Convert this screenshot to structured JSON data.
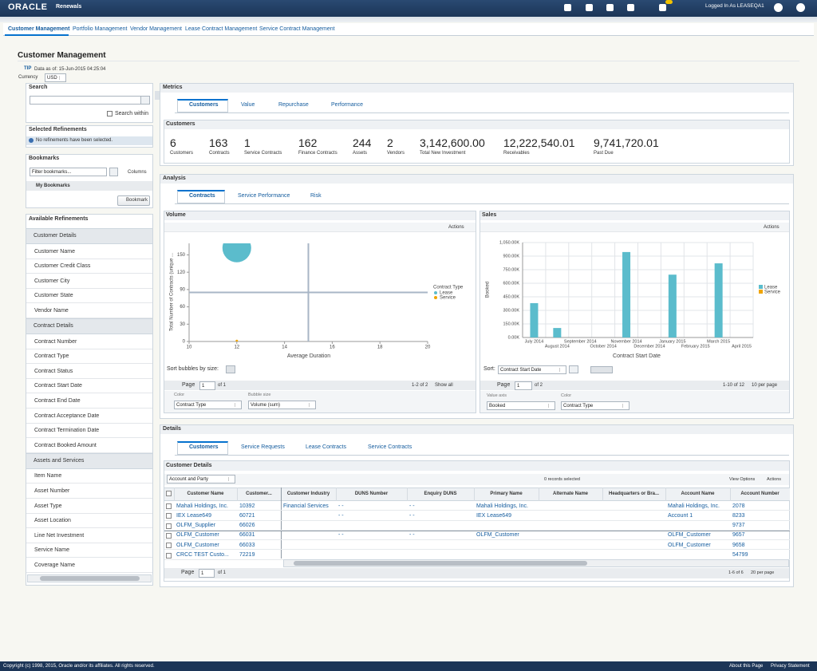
{
  "header": {
    "brand": "ORACLE",
    "product": "Renewals",
    "user": "Logged In As LEASEQA1"
  },
  "nav_tabs": [
    "Customer Management",
    "Portfolio Management",
    "Vendor Management",
    "Lease Contract Management",
    "Service Contract Management"
  ],
  "page": {
    "title": "Customer Management",
    "tip": "TIP",
    "data_as_of": "Data as of: 15-Jun-2015 04:25:04",
    "currency_label": "Currency",
    "currency": "USD"
  },
  "search": {
    "title": "Search",
    "search_within": "Search within"
  },
  "selected_refinements": {
    "title": "Selected Refinements",
    "message": "No refinements have been selected."
  },
  "bookmarks": {
    "title": "Bookmarks",
    "filter_placeholder": "Filter bookmarks...",
    "columns": "Columns",
    "my_bookmarks": "My Bookmarks",
    "button": "Bookmark"
  },
  "available_refinements": {
    "title": "Available Refinements",
    "groups": [
      {
        "name": "Customer Details",
        "items": [
          "Customer Name",
          "Customer Credit Class",
          "Customer City",
          "Customer State",
          "Vendor Name"
        ]
      },
      {
        "name": "Contract Details",
        "items": [
          "Contract Number",
          "Contract Type",
          "Contract Status",
          "Contract Start Date",
          "Contract End Date",
          "Contract Acceptance Date",
          "Contract Termination Date",
          "Contract Booked Amount"
        ]
      },
      {
        "name": "Assets and Services",
        "items": [
          "Item Name",
          "Asset Number",
          "Asset Type",
          "Asset Location",
          "Line Net Investment",
          "Service Name",
          "Coverage Name"
        ]
      }
    ]
  },
  "metrics": {
    "title": "Metrics",
    "tabs": [
      "Customers",
      "Value",
      "Repurchase",
      "Performance"
    ],
    "section_title": "Customers",
    "items": [
      {
        "value": "6",
        "label": "Customers"
      },
      {
        "value": "163",
        "label": "Contracts"
      },
      {
        "value": "1",
        "label": "Service Contracts"
      },
      {
        "value": "162",
        "label": "Finance Contracts"
      },
      {
        "value": "244",
        "label": "Assets"
      },
      {
        "value": "2",
        "label": "Vendors"
      },
      {
        "value": "3,142,600.00",
        "label": "Total New Investment"
      },
      {
        "value": "12,222,540.01",
        "label": "Receivables"
      },
      {
        "value": "9,741,720.01",
        "label": "Past Due"
      }
    ]
  },
  "analysis": {
    "title": "Analysis",
    "tabs": [
      "Contracts",
      "Service Performance",
      "Risk"
    ],
    "volume": {
      "title": "Volume",
      "actions": "Actions",
      "chart": {
        "type": "bubble",
        "y_label": "Total Number of Contracts (unique ...",
        "x_label": "Average Duration",
        "xlim": [
          10,
          20
        ],
        "xticks": [
          10,
          12,
          14,
          16,
          18,
          20
        ],
        "ylim": [
          0,
          170
        ],
        "yticks": [
          0,
          30,
          60,
          90,
          120,
          150
        ],
        "reference_x": 15,
        "reference_y": 85,
        "legend_title": "Contract Type",
        "series": [
          {
            "name": "Lease",
            "color": "#5bbccc",
            "x": [
              12
            ],
            "values": [
              162
            ],
            "sizes": [
              162
            ]
          },
          {
            "name": "Service",
            "color": "#f0a500",
            "x": [
              12
            ],
            "values": [
              1
            ],
            "sizes": [
              1
            ]
          }
        ]
      },
      "sort_label": "Sort bubbles by size:",
      "pager": {
        "page_label": "Page",
        "page": "1",
        "of": "of 1",
        "range": "1-2 of 2",
        "show_all": "Show all"
      },
      "color_label": "Color",
      "color_value": "Contract Type",
      "size_label": "Bubble size",
      "size_value": "Volume (sum)"
    },
    "sales": {
      "title": "Sales",
      "actions": "Actions",
      "chart": {
        "type": "bar",
        "y_label": "Booked",
        "x_label": "Contract Start Date",
        "categories": [
          "July 2014",
          "August 2014",
          "September 2014",
          "October 2014",
          "November 2014",
          "December 2014",
          "January 2015",
          "February 2015",
          "March 2015",
          "April 2015"
        ],
        "ylim": [
          0,
          1050000
        ],
        "yticks": [
          {
            "value": 0,
            "label": "0.00K"
          },
          {
            "value": 150000,
            "label": "150.00K"
          },
          {
            "value": 300000,
            "label": "300.00K"
          },
          {
            "value": 450000,
            "label": "450.00K"
          },
          {
            "value": 600000,
            "label": "600.00K"
          },
          {
            "value": 750000,
            "label": "750.00K"
          },
          {
            "value": 900000,
            "label": "900.00K"
          },
          {
            "value": 1050000,
            "label": "1,050.00K"
          }
        ],
        "grid": true,
        "series": [
          {
            "name": "Lease",
            "color": "#5bbccc",
            "values": [
              380000,
              105000,
              0,
              0,
              945000,
              0,
              695000,
              0,
              820000,
              0
            ]
          },
          {
            "name": "Service",
            "color": "#f0a500",
            "values": [
              0,
              0,
              0,
              0,
              0,
              0,
              0,
              0,
              0,
              0
            ]
          }
        ]
      },
      "sort_label": "Sort:",
      "sort_value": "Contract Start Date",
      "pager": {
        "page_label": "Page",
        "page": "1",
        "of": "of 2",
        "range": "1-10 of 12",
        "per_page": "10 per page"
      },
      "value_axis_label": "Value axis",
      "value_axis_value": "Booked",
      "color_label": "Color",
      "color_value": "Contract Type"
    }
  },
  "details": {
    "title": "Details",
    "tabs": [
      "Customers",
      "Service Requests",
      "Lease Contracts",
      "Service Contracts"
    ],
    "section_title": "Customer Details",
    "view_select": "Account and Party",
    "selected_count": "0 records selected",
    "view_options": "View Options",
    "actions": "Actions",
    "table": {
      "columns": [
        "Customer Name",
        "Customer...",
        "Customer Industry",
        "DUNS Number",
        "Enquiry DUNS",
        "Primary Name",
        "Alternate Name",
        "Headquarters or Bra...",
        "Account Name",
        "Account Number"
      ],
      "rows": [
        [
          "Mahali Holdings, Inc.",
          "10392",
          "Financial Services",
          "- -",
          "- -",
          "Mahali Holdings, Inc.",
          null,
          null,
          "Mahali Holdings, Inc.",
          "2078"
        ],
        [
          "IEX Lease649",
          "60721",
          null,
          "- -",
          "- -",
          "IEX Lease649",
          null,
          null,
          "Account 1",
          "8233"
        ],
        [
          "OLFM_Supplier",
          "66026",
          null,
          null,
          null,
          null,
          null,
          null,
          null,
          "9737"
        ],
        [
          "OLFM_Customer",
          "66031",
          null,
          "- -",
          "- -",
          "OLFM_Customer",
          null,
          null,
          "OLFM_Customer",
          "9657"
        ],
        [
          "OLFM_Customer",
          "66033",
          null,
          null,
          null,
          null,
          null,
          null,
          "OLFM_Customer",
          "9658"
        ],
        [
          "CRCC TEST Custo...",
          "72219",
          null,
          null,
          null,
          null,
          null,
          null,
          null,
          "54799"
        ]
      ]
    },
    "pager": {
      "page_label": "Page",
      "page": "1",
      "of": "of 1",
      "range": "1-6 of 6",
      "per_page": "20 per page"
    }
  },
  "footer": {
    "copyright": "Copyright (c) 1998, 2015, Oracle and/or its affiliates. All rights reserved.",
    "about": "About this Page",
    "privacy": "Privacy Statement"
  }
}
